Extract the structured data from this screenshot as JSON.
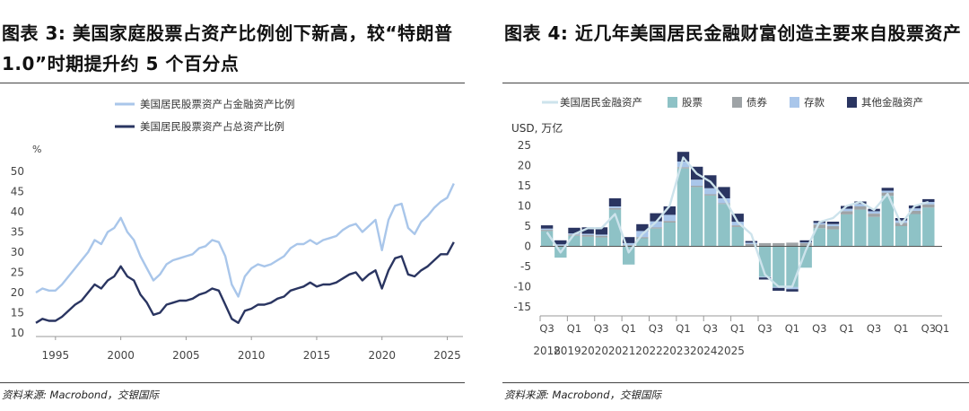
{
  "left": {
    "title": "图表 3: 美国家庭股票占资产比例创下新高，较“特朗普 1.0”时期提升约 5 个百分点",
    "source": "资料来源: Macrobond，交银国际",
    "chart_data": {
      "type": "line",
      "title": "图表 3: 美国家庭股票占资产比例创下新高，较“特朗普 1.0”时期提升约 5 个百分点",
      "ylabel": "%",
      "ylim": [
        10,
        50
      ],
      "yticks": [
        10,
        15,
        20,
        25,
        30,
        35,
        40,
        45,
        50
      ],
      "xlim": [
        1993.5,
        2026.2
      ],
      "xticks": [
        1995,
        2000,
        2005,
        2010,
        2015,
        2020,
        2025
      ],
      "legend": "top-left",
      "series": [
        {
          "name": "美国居民股票资产占金融资产比例",
          "color": "#a9c6ea",
          "x": [
            1993.5,
            1994,
            1994.5,
            1995,
            1995.5,
            1996,
            1996.5,
            1997,
            1997.5,
            1998,
            1998.5,
            1999,
            1999.5,
            2000,
            2000.5,
            2001,
            2001.5,
            2002,
            2002.5,
            2003,
            2003.5,
            2004,
            2004.5,
            2005,
            2005.5,
            2006,
            2006.5,
            2007,
            2007.5,
            2008,
            2008.5,
            2009,
            2009.5,
            2010,
            2010.5,
            2011,
            2011.5,
            2012,
            2012.5,
            2013,
            2013.5,
            2014,
            2014.5,
            2015,
            2015.5,
            2016,
            2016.5,
            2017,
            2017.5,
            2018,
            2018.5,
            2019,
            2019.5,
            2020,
            2020.5,
            2021,
            2021.5,
            2022,
            2022.5,
            2023,
            2023.5,
            2024,
            2024.5,
            2025,
            2025.5
          ],
          "y": [
            20,
            21,
            20.5,
            20.5,
            22,
            24,
            26,
            28,
            30,
            33,
            32,
            35,
            36,
            38.5,
            35,
            33,
            29,
            26,
            23,
            24.5,
            27,
            28,
            28.5,
            29,
            29.5,
            31,
            31.5,
            33,
            32.5,
            29,
            22,
            19,
            24,
            26,
            27,
            26.5,
            27,
            28,
            29,
            31,
            32,
            32,
            33,
            32,
            33,
            33.5,
            34,
            35.5,
            36.5,
            37,
            35,
            36.5,
            38,
            30.5,
            38,
            41.5,
            42,
            36,
            34.5,
            37.5,
            39,
            41,
            42.5,
            43.5,
            47
          ]
        },
        {
          "name": "美国居民股票资产占总资产比例",
          "color": "#2a3561",
          "x": [
            1993.5,
            1994,
            1994.5,
            1995,
            1995.5,
            1996,
            1996.5,
            1997,
            1997.5,
            1998,
            1998.5,
            1999,
            1999.5,
            2000,
            2000.5,
            2001,
            2001.5,
            2002,
            2002.5,
            2003,
            2003.5,
            2004,
            2004.5,
            2005,
            2005.5,
            2006,
            2006.5,
            2007,
            2007.5,
            2008,
            2008.5,
            2009,
            2009.5,
            2010,
            2010.5,
            2011,
            2011.5,
            2012,
            2012.5,
            2013,
            2013.5,
            2014,
            2014.5,
            2015,
            2015.5,
            2016,
            2016.5,
            2017,
            2017.5,
            2018,
            2018.5,
            2019,
            2019.5,
            2020,
            2020.5,
            2021,
            2021.5,
            2022,
            2022.5,
            2023,
            2023.5,
            2024,
            2024.5,
            2025,
            2025.5
          ],
          "y": [
            12.5,
            13.5,
            13,
            13,
            14,
            15.5,
            17,
            18,
            20,
            22,
            21,
            23,
            24,
            26.5,
            24,
            23,
            19.5,
            17.5,
            14.5,
            15,
            17,
            17.5,
            18,
            18,
            18.5,
            19.5,
            20,
            21,
            20.5,
            17,
            13.5,
            12.5,
            15.5,
            16,
            17,
            17,
            17.5,
            18.5,
            19,
            20.5,
            21,
            21.5,
            22.5,
            21.5,
            22,
            22,
            22.5,
            23.5,
            24.5,
            25,
            23,
            24.5,
            25.5,
            21,
            25.5,
            28.5,
            29,
            24.5,
            24,
            25.5,
            26.5,
            28,
            29.5,
            29.5,
            32.5
          ]
        }
      ]
    }
  },
  "right": {
    "title": "图表 4: 近几年美国居民金融财富创造主要来自股票资产",
    "source": "资料来源: Macrobond，交银国际",
    "chart_data": {
      "type": "bar",
      "stacked": true,
      "title": "图表 4: 近几年美国居民金融财富创造主要来自股票资产",
      "ylabel": "USD, 万亿",
      "ylim": [
        -15,
        25
      ],
      "yticks": [
        -15,
        -10,
        -5,
        0,
        5,
        10,
        15,
        20,
        25
      ],
      "legend": "top",
      "quarter_ticks": [
        "Q3",
        "Q1",
        "Q3",
        "Q1",
        "Q3",
        "Q1",
        "Q3",
        "Q1",
        "Q3",
        "Q1",
        "Q3",
        "Q1",
        "Q3",
        "Q1",
        "Q3",
        "Q1"
      ],
      "year_labels": [
        "2018",
        "2019",
        "2020",
        "2021",
        "2022",
        "2023",
        "2024",
        "2025"
      ],
      "categories": [
        "2018Q3",
        "2018Q4",
        "2019Q1",
        "2019Q2",
        "2019Q3",
        "2019Q4",
        "2020Q1",
        "2020Q2",
        "2020Q3",
        "2020Q4",
        "2021Q1",
        "2021Q2",
        "2021Q3",
        "2021Q4",
        "2022Q1",
        "2022Q2",
        "2022Q3",
        "2022Q4",
        "2023Q1",
        "2023Q2",
        "2023Q3",
        "2023Q4",
        "2024Q1",
        "2024Q2",
        "2024Q3",
        "2024Q4",
        "2025Q1",
        "2025Q2",
        "2025Q3"
      ],
      "total_line": {
        "name": "美国居民金融资产",
        "color": "#cde3ec",
        "values": [
          3.5,
          -1.5,
          3,
          4.5,
          4.5,
          8,
          -1.5,
          3,
          6,
          10,
          22,
          18,
          16,
          12,
          6,
          3,
          -7,
          -10,
          -10,
          -1,
          6,
          7,
          10,
          11,
          9,
          13,
          5.5,
          10,
          11
        ]
      },
      "series": [
        {
          "name": "股票",
          "color": "#8ec2c6",
          "values": [
            3.8,
            -2.8,
            2.6,
            2.4,
            2.2,
            9.1,
            -4.5,
            2.0,
            4.4,
            5.9,
            19.3,
            14.7,
            12.6,
            10.5,
            4.8,
            0,
            -7.5,
            -10.0,
            -10.1,
            -5.3,
            4.5,
            4.2,
            7.9,
            9.1,
            7.3,
            12.5,
            5.0,
            8.0,
            9.6
          ]
        },
        {
          "name": "债券",
          "color": "#9ea3a6",
          "values": [
            0.3,
            0.2,
            0.3,
            0.4,
            0.4,
            0.4,
            0.3,
            0.3,
            0.3,
            0.4,
            0.3,
            0.3,
            0.3,
            0.2,
            0.4,
            0.6,
            0.8,
            0.8,
            0.9,
            0.8,
            0.9,
            0.8,
            0.8,
            0.8,
            0.8,
            0.8,
            0.8,
            0.8,
            0.8
          ]
        },
        {
          "name": "存款",
          "color": "#a9c6ea",
          "values": [
            0.3,
            0.3,
            0.3,
            0.3,
            0.3,
            0.4,
            0.5,
            1.5,
            1.5,
            1.5,
            1.4,
            1.5,
            1.5,
            1.2,
            0.9,
            0.3,
            -0.2,
            -0.3,
            -0.5,
            0.2,
            0.4,
            0.5,
            0.6,
            0.6,
            0.6,
            0.5,
            0.6,
            0.6,
            0.6
          ]
        },
        {
          "name": "其他金融资产",
          "color": "#2a3561",
          "values": [
            0.8,
            1.0,
            1.4,
            1.6,
            1.8,
            2.0,
            1.5,
            1.7,
            2.0,
            2.1,
            2.4,
            3.2,
            3.2,
            2.8,
            2.0,
            0.4,
            -0.5,
            -0.7,
            -0.6,
            0.5,
            0.5,
            0.6,
            0.7,
            0.6,
            0.6,
            0.7,
            0.6,
            0.7,
            0.7
          ]
        }
      ]
    }
  }
}
